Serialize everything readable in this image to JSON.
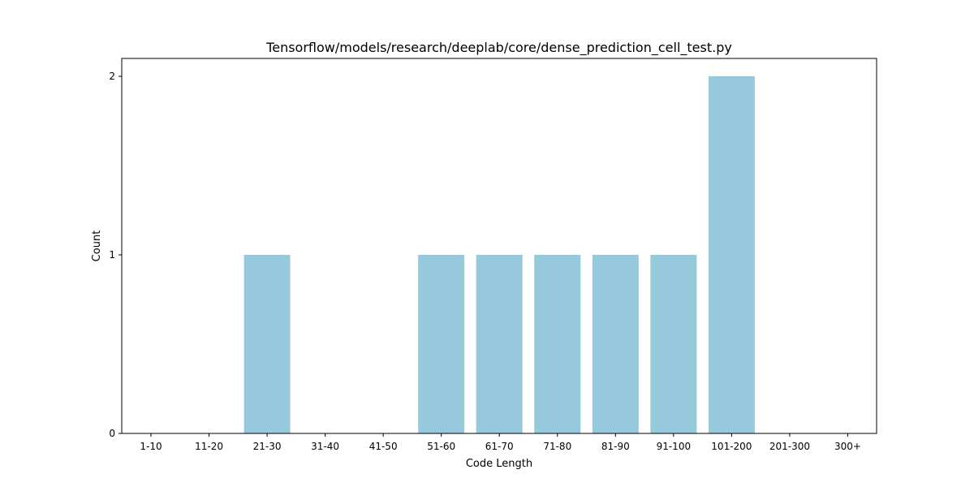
{
  "chart_data": {
    "type": "bar",
    "title": "Tensorflow/models/research/deeplab/core/dense_prediction_cell_test.py",
    "xlabel": "Code Length",
    "ylabel": "Count",
    "categories": [
      "1-10",
      "11-20",
      "21-30",
      "31-40",
      "41-50",
      "51-60",
      "61-70",
      "71-80",
      "81-90",
      "91-100",
      "101-200",
      "201-300",
      "300+"
    ],
    "values": [
      0,
      0,
      1,
      0,
      0,
      1,
      1,
      1,
      1,
      1,
      2,
      0,
      0
    ],
    "yticks": [
      "0",
      "1",
      "2"
    ],
    "ylim": [
      0,
      2.1
    ],
    "bar_color": "#96c9dc",
    "grid": false
  }
}
